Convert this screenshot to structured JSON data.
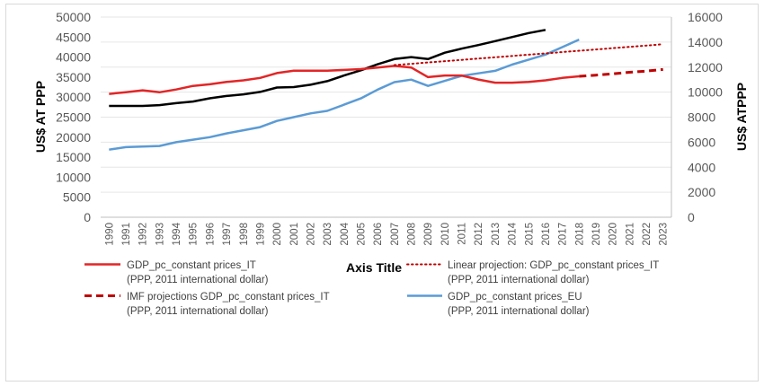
{
  "chart_data": {
    "type": "line",
    "x": [
      1990,
      1991,
      1992,
      1993,
      1994,
      1995,
      1996,
      1997,
      1998,
      1999,
      2000,
      2001,
      2002,
      2003,
      2004,
      2005,
      2006,
      2007,
      2008,
      2009,
      2010,
      2011,
      2012,
      2013,
      2014,
      2015,
      2016,
      2017,
      2018,
      2019,
      2020,
      2021,
      2022,
      2023
    ],
    "x_tick_labels": [
      "1990",
      "1991",
      "1992",
      "1993",
      "1994",
      "1995",
      "1996",
      "1997",
      "1998",
      "1999",
      "2000",
      "2001",
      "2002",
      "2003",
      "2004",
      "2005",
      "2006",
      "2007",
      "2008",
      "2009",
      "2010",
      "2011",
      "2012",
      "2013",
      "2014",
      "2015",
      "2016",
      "2017",
      "2018",
      "2019",
      "2020",
      "2021",
      "2022",
      "2023"
    ],
    "xlabel": "Axis Title",
    "ylabel_left": "US$ AT PPP",
    "ylabel_right": "US$ ATPPP",
    "ylim_left": [
      0,
      50000
    ],
    "ylim_right": [
      0,
      16000
    ],
    "yticks_left": [
      "0",
      "5000",
      "10000",
      "15000",
      "20000",
      "25000",
      "30000",
      "35000",
      "40000",
      "45000",
      "50000"
    ],
    "yticks_right": [
      "0",
      "2000",
      "4000",
      "6000",
      "8000",
      "10000",
      "12000",
      "14000",
      "16000"
    ],
    "grid": "horizontal",
    "legend_position": "bottom",
    "series": [
      {
        "key": "it",
        "name": "GDP_pc_constant prices_IT",
        "name_line2": "(PPP, 2011 international dollar)",
        "axis": "left",
        "style": "solid",
        "color": "#e32526",
        "x": [
          1990,
          1991,
          1992,
          1993,
          1994,
          1995,
          1996,
          1997,
          1998,
          1999,
          2000,
          2001,
          2002,
          2003,
          2004,
          2005,
          2006,
          2007,
          2008,
          2009,
          2010,
          2011,
          2012,
          2013,
          2014,
          2015,
          2016,
          2017,
          2018
        ],
        "values": [
          30800,
          31200,
          31700,
          31200,
          31900,
          32800,
          33200,
          33800,
          34200,
          34800,
          36000,
          36600,
          36600,
          36600,
          36800,
          37000,
          37400,
          37800,
          37400,
          35000,
          35400,
          35400,
          34400,
          33600,
          33600,
          33800,
          34200,
          34800,
          35200
        ]
      },
      {
        "key": "lin",
        "name": "Linear projection: GDP_pc_constant prices_IT",
        "name_line2": "(PPP, 2011 international dollar)",
        "axis": "left",
        "style": "dotted",
        "color": "#c00000",
        "x": [
          2007,
          2023
        ],
        "values": [
          38000,
          43200
        ]
      },
      {
        "key": "imf",
        "name": "IMF projections GDP_pc_constant prices_IT",
        "name_line2": "(PPP, 2011 international dollar)",
        "axis": "left",
        "style": "dashed",
        "color": "#c00000",
        "x": [
          2018,
          2019,
          2020,
          2021,
          2022,
          2023
        ],
        "values": [
          35200,
          35500,
          35800,
          36200,
          36500,
          36900
        ]
      },
      {
        "key": "eu",
        "name": "GDP_pc_constant prices_EU",
        "name_line2": "(PPP, 2011 international dollar)",
        "axis": "right",
        "style": "solid",
        "color": "#5b9bd5",
        "x": [
          1990,
          1991,
          1992,
          1993,
          1994,
          1995,
          1996,
          1997,
          1998,
          1999,
          2000,
          2001,
          2002,
          2003,
          2004,
          2005,
          2006,
          2007,
          2008,
          2009,
          2010,
          2011,
          2012,
          2013,
          2014,
          2015,
          2016,
          2017,
          2018
        ],
        "values": [
          5400,
          5600,
          5650,
          5700,
          6000,
          6200,
          6400,
          6700,
          6950,
          7200,
          7700,
          8000,
          8300,
          8500,
          9000,
          9500,
          10200,
          10800,
          11000,
          10500,
          10900,
          11300,
          11500,
          11700,
          12200,
          12600,
          13000,
          13600,
          14200
        ]
      },
      {
        "key": "black",
        "axis": "left",
        "style": "solid",
        "color": "#000000",
        "x": [
          1990,
          1991,
          1992,
          1993,
          1994,
          1995,
          1996,
          1997,
          1998,
          1999,
          2000,
          2001,
          2002,
          2003,
          2004,
          2005,
          2006,
          2007,
          2008,
          2009,
          2010,
          2011,
          2012,
          2013,
          2014,
          2015,
          2016
        ],
        "values": [
          27800,
          27800,
          27800,
          28000,
          28500,
          28900,
          29700,
          30300,
          30700,
          31300,
          32400,
          32500,
          33100,
          34000,
          35400,
          36700,
          38200,
          39500,
          40000,
          39500,
          41100,
          42100,
          43000,
          44000,
          45000,
          46000,
          46800
        ]
      }
    ]
  }
}
